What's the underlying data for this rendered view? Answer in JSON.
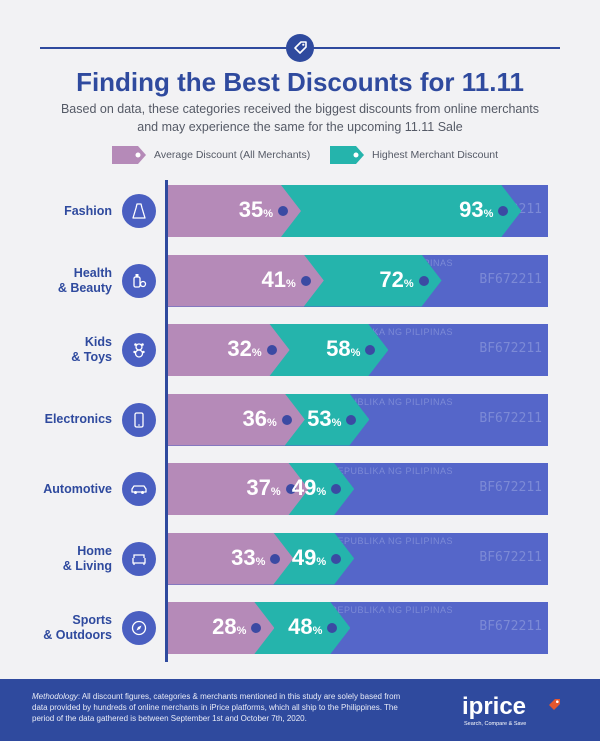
{
  "header": {
    "title": "Finding the Best Discounts for 11.11",
    "subtitle": "Based on data, these categories received the biggest discounts from online merchants and may experience the same for the upcoming 11.11 Sale"
  },
  "legend": {
    "avg_label": "Average Discount (All Merchants)",
    "high_label": "Highest Merchant Discount"
  },
  "colors": {
    "avg": "#b58ab8",
    "high": "#25b4ac",
    "bar_background": "#5566c9",
    "brand": "#2f4a9e"
  },
  "watermark": {
    "text": "REPUBLIKA NG PILIPINAS",
    "serial": "BF672211"
  },
  "chart_data": {
    "type": "bar",
    "orientation": "horizontal",
    "title": "Finding the Best Discounts for 11.11",
    "unit": "%",
    "xlim": [
      0,
      100
    ],
    "categories": [
      "Fashion",
      "Health & Beauty",
      "Kids & Toys",
      "Electronics",
      "Automotive",
      "Home & Living",
      "Sports & Outdoors"
    ],
    "category_lines": [
      [
        "Fashion"
      ],
      [
        "Health",
        "& Beauty"
      ],
      [
        "Kids",
        "& Toys"
      ],
      [
        "Electronics"
      ],
      [
        "Automotive"
      ],
      [
        "Home",
        "& Living"
      ],
      [
        "Sports",
        "& Outdoors"
      ]
    ],
    "icons": [
      "dress-icon",
      "cosmetics-icon",
      "teddy-bear-icon",
      "smartphone-icon",
      "car-icon",
      "sofa-icon",
      "compass-icon"
    ],
    "series": [
      {
        "name": "Average Discount (All Merchants)",
        "values": [
          35,
          41,
          32,
          36,
          37,
          33,
          28
        ]
      },
      {
        "name": "Highest Merchant Discount",
        "values": [
          93,
          72,
          58,
          53,
          49,
          49,
          48
        ]
      }
    ],
    "legend_position": "top"
  },
  "footer": {
    "methodology_label": "Methodology",
    "methodology_text": ": All discount figures, categories & merchants mentioned in this study are solely based from data provided by hundreds of online merchants in iPrice platforms, which all ship to the Philippines. The period of the data gathered is between September 1st and October 7th, 2020.",
    "logo_text": "iprice",
    "logo_tagline": "Search, Compare & Save"
  }
}
